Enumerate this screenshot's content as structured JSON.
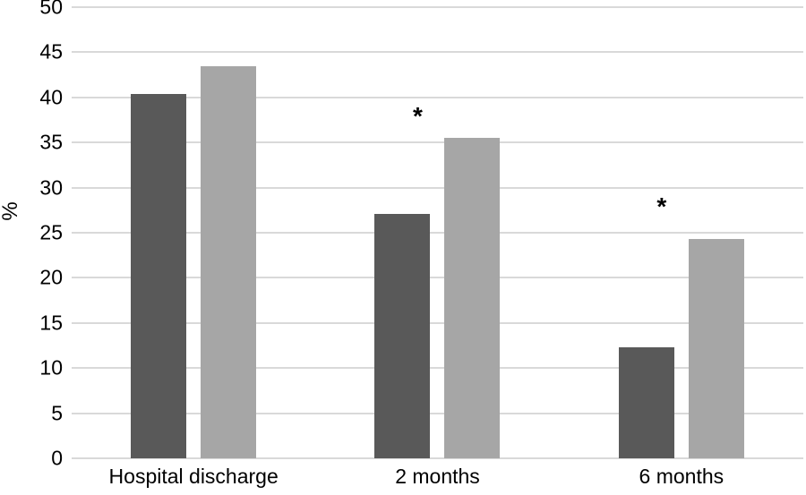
{
  "chart_data": {
    "type": "bar",
    "title": "",
    "xlabel": "",
    "ylabel": "%",
    "categories": [
      "Hospital discharge",
      "2 months",
      "6 months"
    ],
    "series": [
      {
        "name": "dark-gray-series",
        "color": "#595959",
        "values": [
          40.4,
          27.1,
          12.3
        ]
      },
      {
        "name": "light-gray-series",
        "color": "#a6a6a6",
        "values": [
          43.5,
          35.5,
          24.3
        ]
      }
    ],
    "annotations": [
      {
        "category": "2 months",
        "category_index": 1,
        "text": "*",
        "value": 38
      },
      {
        "category": "6 months",
        "category_index": 2,
        "text": "*",
        "value": 28
      }
    ],
    "ylim": [
      0,
      50
    ],
    "ytick_step": 5,
    "yticks": [
      0,
      5,
      10,
      15,
      20,
      25,
      30,
      35,
      40,
      45,
      50
    ],
    "grid": true,
    "legend_position": "none",
    "colors": {
      "grid": "#d9d9d9",
      "axis": "#d9d9d9",
      "text": "#000000",
      "background": "#ffffff"
    }
  }
}
